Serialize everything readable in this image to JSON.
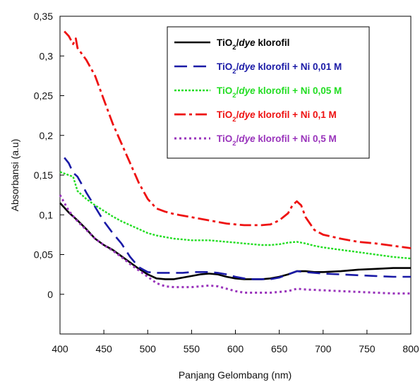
{
  "chart_data": {
    "type": "line",
    "xlabel": "Panjang Gelombang (nm)",
    "ylabel": "Absorbansi (a.u)",
    "xlim": [
      400,
      800
    ],
    "ylim": [
      -0.05,
      0.35
    ],
    "x_ticks": [
      "400",
      "450",
      "500",
      "550",
      "600",
      "650",
      "700",
      "750",
      "800"
    ],
    "y_ticks": [
      "0",
      "0,05",
      "0,1",
      "0,15",
      "0,2",
      "0,25",
      "0,3",
      "0,35"
    ],
    "grid": false,
    "legend_position": "top-right",
    "series": [
      {
        "legend": [
          "TiO",
          "2",
          "/",
          "dye",
          " klorofil"
        ],
        "color": "#000000",
        "dash": "solid",
        "x": [
          400,
          410,
          420,
          430,
          440,
          450,
          460,
          470,
          480,
          490,
          500,
          510,
          520,
          530,
          540,
          550,
          560,
          570,
          580,
          590,
          600,
          610,
          620,
          630,
          640,
          650,
          660,
          670,
          680,
          690,
          700,
          720,
          740,
          760,
          780,
          800
        ],
        "y": [
          0.115,
          0.103,
          0.093,
          0.082,
          0.07,
          0.062,
          0.056,
          0.048,
          0.04,
          0.032,
          0.025,
          0.02,
          0.019,
          0.019,
          0.021,
          0.023,
          0.025,
          0.026,
          0.025,
          0.022,
          0.02,
          0.019,
          0.019,
          0.019,
          0.02,
          0.022,
          0.025,
          0.029,
          0.029,
          0.028,
          0.028,
          0.029,
          0.031,
          0.032,
          0.033,
          0.033
        ]
      },
      {
        "legend": [
          "TiO",
          "2",
          "/",
          "dye",
          " klorofil + Ni 0,01 M"
        ],
        "color": "#1a1aa6",
        "dash": "long",
        "x": [
          405,
          410,
          415,
          420,
          425,
          430,
          440,
          450,
          460,
          470,
          480,
          490,
          500,
          510,
          520,
          530,
          540,
          550,
          560,
          570,
          580,
          590,
          600,
          610,
          620,
          630,
          640,
          650,
          660,
          670,
          680,
          700,
          720,
          740,
          760,
          780,
          800
        ],
        "y": [
          0.172,
          0.165,
          0.153,
          0.148,
          0.138,
          0.128,
          0.11,
          0.092,
          0.077,
          0.064,
          0.047,
          0.034,
          0.028,
          0.027,
          0.027,
          0.027,
          0.027,
          0.028,
          0.028,
          0.028,
          0.027,
          0.025,
          0.022,
          0.02,
          0.019,
          0.019,
          0.019,
          0.021,
          0.025,
          0.029,
          0.028,
          0.026,
          0.025,
          0.024,
          0.023,
          0.022,
          0.022
        ]
      },
      {
        "legend": [
          "TiO",
          "2",
          "/",
          "dye",
          " klorofil + Ni 0,05 M"
        ],
        "color": "#22dd22",
        "dash": "dense",
        "x": [
          400,
          410,
          415,
          420,
          430,
          440,
          450,
          460,
          470,
          480,
          490,
          500,
          510,
          520,
          530,
          540,
          550,
          560,
          570,
          580,
          590,
          600,
          610,
          620,
          630,
          640,
          650,
          660,
          670,
          680,
          690,
          700,
          720,
          740,
          760,
          780,
          800
        ],
        "y": [
          0.154,
          0.15,
          0.148,
          0.13,
          0.12,
          0.112,
          0.105,
          0.098,
          0.092,
          0.087,
          0.082,
          0.077,
          0.074,
          0.072,
          0.07,
          0.069,
          0.068,
          0.068,
          0.068,
          0.067,
          0.066,
          0.065,
          0.064,
          0.063,
          0.062,
          0.062,
          0.063,
          0.065,
          0.066,
          0.064,
          0.061,
          0.059,
          0.056,
          0.053,
          0.05,
          0.047,
          0.045
        ]
      },
      {
        "legend": [
          "TiO",
          "2",
          "/",
          "dye",
          " klorofil + Ni 0,1 M"
        ],
        "color": "#ee1111",
        "dash": "dashdot",
        "x": [
          405,
          410,
          415,
          418,
          420,
          430,
          440,
          450,
          460,
          470,
          480,
          490,
          500,
          510,
          520,
          530,
          540,
          550,
          560,
          570,
          580,
          590,
          600,
          610,
          620,
          630,
          640,
          650,
          660,
          665,
          670,
          675,
          680,
          690,
          700,
          720,
          740,
          760,
          780,
          800
        ],
        "y": [
          0.331,
          0.325,
          0.315,
          0.322,
          0.31,
          0.295,
          0.275,
          0.245,
          0.215,
          0.19,
          0.165,
          0.14,
          0.12,
          0.108,
          0.104,
          0.101,
          0.099,
          0.097,
          0.095,
          0.093,
          0.091,
          0.089,
          0.088,
          0.087,
          0.087,
          0.087,
          0.088,
          0.093,
          0.102,
          0.112,
          0.117,
          0.112,
          0.097,
          0.081,
          0.075,
          0.07,
          0.066,
          0.064,
          0.061,
          0.058
        ]
      },
      {
        "legend": [
          "TiO",
          "2",
          "/",
          "dye",
          " klorofil + Ni 0,5 M"
        ],
        "color": "#9933bb",
        "dash": "dotted",
        "x": [
          400,
          410,
          420,
          430,
          440,
          450,
          460,
          470,
          480,
          490,
          500,
          510,
          520,
          530,
          540,
          550,
          560,
          570,
          580,
          590,
          600,
          610,
          620,
          630,
          640,
          650,
          660,
          670,
          680,
          700,
          720,
          740,
          760,
          780,
          800
        ],
        "y": [
          0.125,
          0.105,
          0.092,
          0.081,
          0.07,
          0.062,
          0.055,
          0.047,
          0.038,
          0.03,
          0.022,
          0.014,
          0.01,
          0.009,
          0.009,
          0.009,
          0.01,
          0.011,
          0.01,
          0.007,
          0.004,
          0.002,
          0.002,
          0.002,
          0.002,
          0.003,
          0.004,
          0.007,
          0.006,
          0.005,
          0.004,
          0.003,
          0.002,
          0.001,
          0.001
        ]
      }
    ]
  }
}
